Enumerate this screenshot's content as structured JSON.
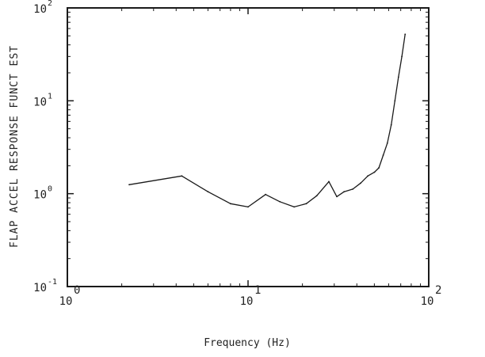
{
  "chart_data": {
    "type": "line",
    "title": "",
    "xlabel": "Frequency (Hz)",
    "ylabel": "FLAP ACCEL RESPONSE FUNCT EST",
    "x_scale": "log",
    "y_scale": "log",
    "xlim": [
      1,
      100
    ],
    "ylim": [
      0.1,
      100
    ],
    "grid": false,
    "legend": "none",
    "x_ticks": [
      {
        "base": "10",
        "exp": "0",
        "value": 1
      },
      {
        "base": "10",
        "exp": "1",
        "value": 10
      },
      {
        "base": "10",
        "exp": "2",
        "value": 100
      }
    ],
    "y_ticks": [
      {
        "base": "10",
        "exp": "-1",
        "value": 0.1
      },
      {
        "base": "10",
        "exp": "0",
        "value": 1
      },
      {
        "base": "10",
        "exp": "1",
        "value": 10
      },
      {
        "base": "10",
        "exp": "2",
        "value": 100
      }
    ],
    "series": [
      {
        "values": [
          {
            "x": 2.2,
            "y": 1.25
          },
          {
            "x": 4.3,
            "y": 1.55
          },
          {
            "x": 6.0,
            "y": 1.05
          },
          {
            "x": 8.0,
            "y": 0.78
          },
          {
            "x": 10.0,
            "y": 0.72
          },
          {
            "x": 12.5,
            "y": 0.98
          },
          {
            "x": 15.0,
            "y": 0.82
          },
          {
            "x": 18.0,
            "y": 0.72
          },
          {
            "x": 21.0,
            "y": 0.78
          },
          {
            "x": 24.0,
            "y": 0.95
          },
          {
            "x": 28.0,
            "y": 1.35
          },
          {
            "x": 31.0,
            "y": 0.93
          },
          {
            "x": 34.0,
            "y": 1.05
          },
          {
            "x": 38.0,
            "y": 1.12
          },
          {
            "x": 42.0,
            "y": 1.3
          },
          {
            "x": 46.0,
            "y": 1.55
          },
          {
            "x": 50.0,
            "y": 1.7
          },
          {
            "x": 53.0,
            "y": 1.9
          },
          {
            "x": 56.0,
            "y": 2.6
          },
          {
            "x": 59.0,
            "y": 3.5
          },
          {
            "x": 62.0,
            "y": 5.5
          },
          {
            "x": 65.0,
            "y": 10.0
          },
          {
            "x": 68.0,
            "y": 18.0
          },
          {
            "x": 71.0,
            "y": 30.0
          },
          {
            "x": 74.0,
            "y": 52.0
          }
        ]
      }
    ]
  }
}
